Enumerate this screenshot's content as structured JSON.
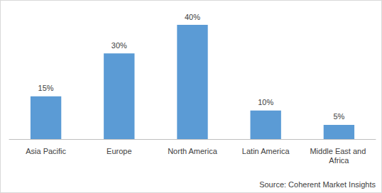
{
  "chart_data": {
    "type": "bar",
    "categories": [
      "Asia Pacific",
      "Europe",
      "North America",
      "Latin America",
      "Middle East and Africa"
    ],
    "values": [
      15,
      30,
      40,
      10,
      5
    ],
    "value_labels": [
      "15%",
      "30%",
      "40%",
      "10%",
      "5%"
    ],
    "color": "#5b9bd5",
    "ylim": [
      0,
      45
    ],
    "grid": false,
    "data_labels": true,
    "tick_labels": "x",
    "annotations": [
      "Source: Coherent Market Insights"
    ]
  }
}
